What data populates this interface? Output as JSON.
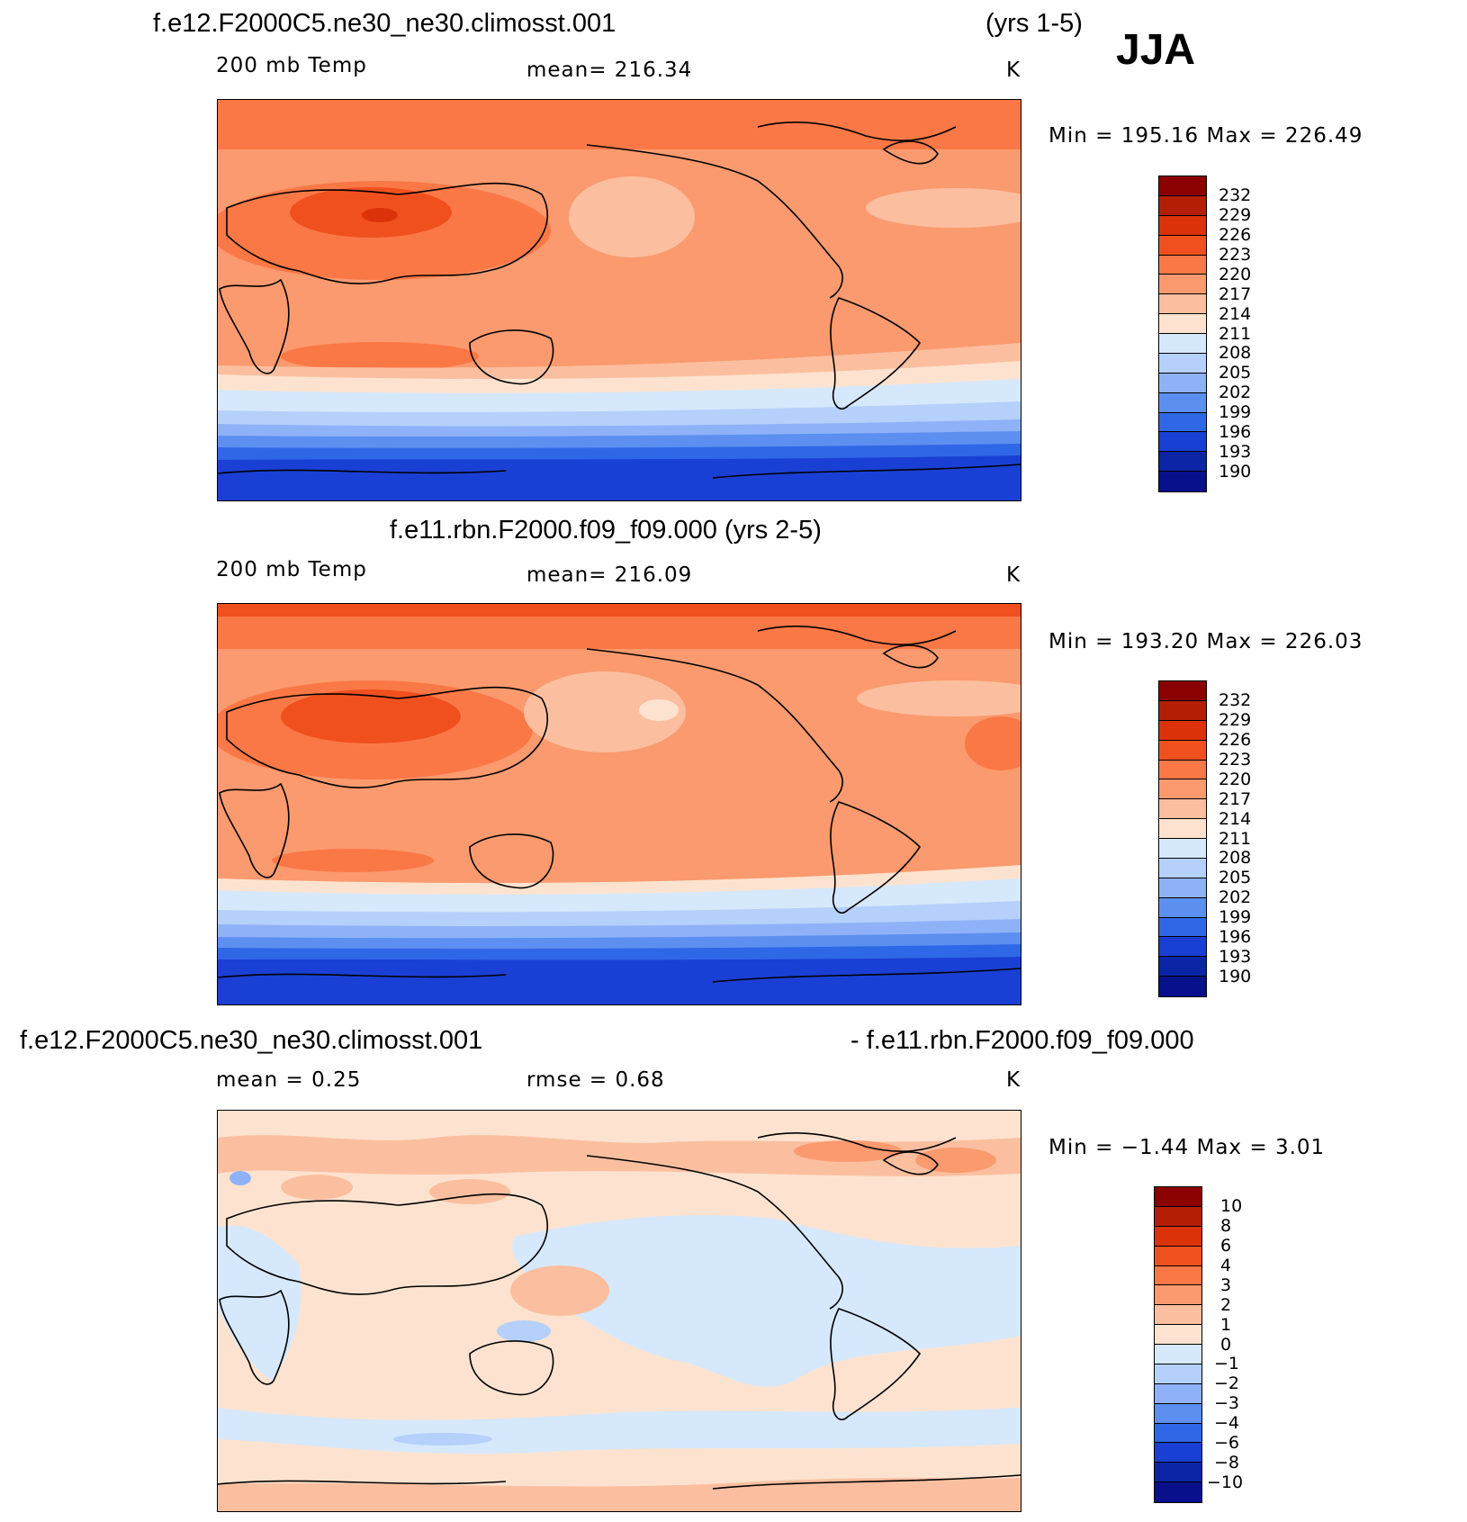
{
  "season": "JJA",
  "panel1": {
    "case": "f.e12.F2000C5.ne30_ne30.climosst.001",
    "years": "(yrs 1-5)",
    "variable": "200 mb Temp",
    "mean_text": "mean=  216.34",
    "units": "K",
    "minmax": "Min  =  195.16  Max  =  226.49"
  },
  "panel2": {
    "title": "f.e11.rbn.F2000.f09_f09.000 (yrs 2-5)",
    "variable": "200 mb Temp",
    "mean_text": "mean=  216.09",
    "units": "K",
    "minmax": "Min  =  193.20  Max  =  226.03"
  },
  "panel3": {
    "case_a": "f.e12.F2000C5.ne30_ne30.climosst.001",
    "case_b": "- f.e11.rbn.F2000.f09_f09.000",
    "mean_text": "mean  =     0.25",
    "rmse_text": "rmse  =     0.68",
    "units": "K",
    "minmax": "Min  =   −1.44  Max  =     3.01"
  },
  "temp_scale": {
    "labels": [
      "232",
      "229",
      "226",
      "223",
      "220",
      "217",
      "214",
      "211",
      "208",
      "205",
      "202",
      "199",
      "196",
      "193",
      "190"
    ],
    "colors": [
      "#8b0000",
      "#b41e05",
      "#dc320a",
      "#f0501e",
      "#fa7846",
      "#fa9a6e",
      "#fbbfa0",
      "#fde3cf",
      "#d6e8fb",
      "#b5d0fa",
      "#8fb1f7",
      "#5d8ff0",
      "#2f68e6",
      "#1a3fd4",
      "#0c24a6",
      "#08108c"
    ]
  },
  "diff_scale": {
    "labels": [
      "10",
      "8",
      "6",
      "4",
      "3",
      "2",
      "1",
      "0",
      "−1",
      "−2",
      "−3",
      "−4",
      "−6",
      "−8",
      "−10"
    ],
    "colors": [
      "#8b0000",
      "#b41e05",
      "#dc320a",
      "#f0501e",
      "#fa7846",
      "#fa9a6e",
      "#fbbfa0",
      "#fde3cf",
      "#d6e8fb",
      "#b5d0fa",
      "#8fb1f7",
      "#5d8ff0",
      "#2f68e6",
      "#1a3fd4",
      "#0c24a6",
      "#08108c"
    ]
  }
}
